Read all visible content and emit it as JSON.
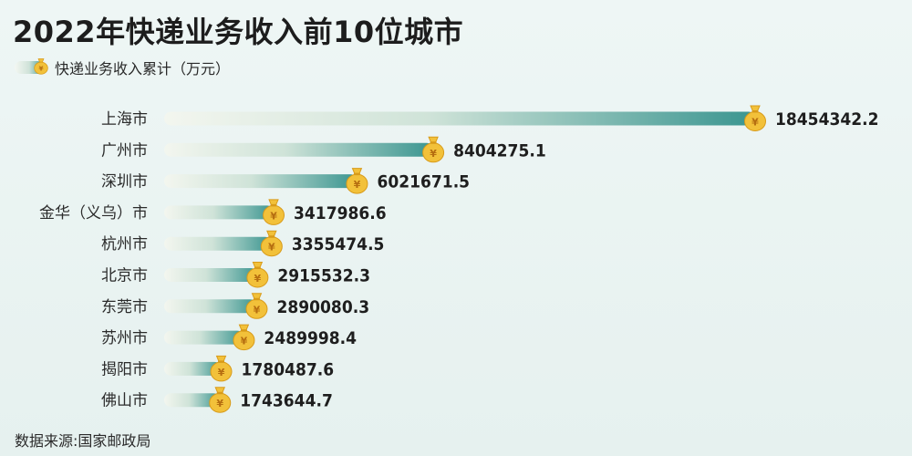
{
  "title": "2022年快递业务收入前10位城市",
  "legend": {
    "label": "快递业务收入累计（万元）",
    "icon": "money-bag-icon"
  },
  "source": "数据来源:国家邮政局",
  "colors": {
    "bar_start": "#f3f6ef",
    "bar_mid": "#cfe3d8",
    "bar_end": "#3a9590",
    "bag_fill": "#f2c13a",
    "bag_stroke": "#d89b1a",
    "bag_symbol": "#b56d10"
  },
  "chart_data": {
    "type": "bar",
    "orientation": "horizontal",
    "title": "2022年快递业务收入前10位城市",
    "series": [
      {
        "name": "快递业务收入累计（万元）",
        "values": [
          18454342.2,
          8404275.1,
          6021671.5,
          3417986.6,
          3355474.5,
          2915532.3,
          2890080.3,
          2489998.4,
          1780487.6,
          1743644.7
        ]
      }
    ],
    "categories": [
      "上海市",
      "广州市",
      "深圳市",
      "金华（义乌）市",
      "杭州市",
      "北京市",
      "东莞市",
      "苏州市",
      "揭阳市",
      "佛山市"
    ],
    "value_labels": [
      "18454342.2",
      "8404275.1",
      "6021671.5",
      "3417986.6",
      "3355474.5",
      "2915532.3",
      "2890080.3",
      "2489998.4",
      "1780487.6",
      "1743644.7"
    ],
    "xlim": [
      0,
      18454342.2
    ],
    "grid": false,
    "legend_position": "top-left"
  }
}
